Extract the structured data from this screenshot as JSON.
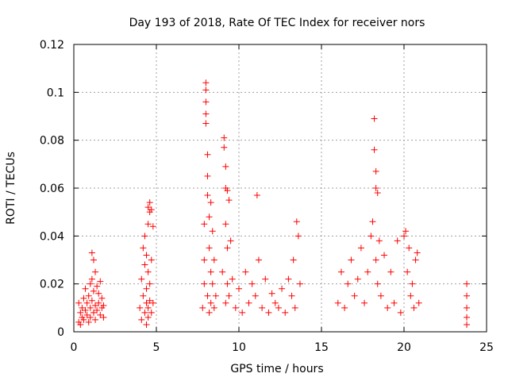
{
  "chart_data": {
    "type": "scatter",
    "title": "Day 193 of 2018, Rate Of TEC Index for receiver nors",
    "xlabel": "GPS time / hours",
    "ylabel": "ROTI / TECUs",
    "xlim": [
      0,
      25
    ],
    "ylim": [
      0,
      0.12
    ],
    "xticks": [
      0,
      5,
      10,
      15,
      20,
      25
    ],
    "xtick_labels": [
      "0",
      "5",
      "10",
      "15",
      "20",
      "25"
    ],
    "yticks": [
      0,
      0.02,
      0.04,
      0.06,
      0.08,
      0.1,
      0.12
    ],
    "ytick_labels": [
      "0",
      "0.02",
      "0.04",
      "0.06",
      "0.08",
      "0.1",
      "0.12"
    ],
    "grid": true,
    "marker": "+",
    "marker_color": "#ff0000",
    "series": [
      {
        "name": "ROTI",
        "x": [
          0.3,
          0.3,
          0.4,
          0.4,
          0.5,
          0.5,
          0.6,
          0.6,
          0.7,
          0.7,
          0.8,
          0.8,
          0.9,
          0.9,
          1.0,
          1.0,
          1.0,
          1.1,
          1.1,
          1.1,
          1.2,
          1.2,
          1.2,
          1.3,
          1.3,
          1.3,
          1.4,
          1.4,
          1.5,
          1.5,
          1.6,
          1.6,
          1.7,
          1.7,
          1.8,
          1.8,
          4.0,
          4.1,
          4.1,
          4.2,
          4.2,
          4.3,
          4.3,
          4.3,
          4.4,
          4.4,
          4.4,
          4.4,
          4.5,
          4.5,
          4.5,
          4.5,
          4.5,
          4.6,
          4.6,
          4.6,
          4.6,
          4.7,
          4.7,
          4.7,
          4.8,
          4.8,
          7.8,
          7.9,
          7.9,
          7.9,
          8.0,
          8.0,
          8.0,
          8.0,
          8.0,
          8.1,
          8.1,
          8.1,
          8.1,
          8.2,
          8.2,
          8.2,
          8.3,
          8.3,
          8.3,
          8.4,
          8.4,
          8.5,
          8.5,
          8.6,
          9.0,
          9.1,
          9.1,
          9.2,
          9.2,
          9.2,
          9.2,
          9.3,
          9.3,
          9.3,
          9.4,
          9.4,
          9.5,
          9.6,
          9.8,
          10.0,
          10.2,
          10.4,
          10.6,
          10.8,
          11.0,
          11.1,
          11.2,
          11.4,
          11.6,
          11.8,
          12.0,
          12.2,
          12.4,
          12.6,
          12.8,
          13.0,
          13.2,
          13.3,
          13.4,
          13.5,
          13.6,
          13.7,
          16.0,
          16.2,
          16.4,
          16.6,
          16.8,
          17.0,
          17.2,
          17.4,
          17.6,
          17.8,
          18.0,
          18.1,
          18.2,
          18.2,
          18.3,
          18.3,
          18.3,
          18.4,
          18.4,
          18.5,
          18.6,
          18.8,
          19.0,
          19.2,
          19.4,
          19.6,
          19.8,
          20.0,
          20.1,
          20.2,
          20.3,
          20.4,
          20.5,
          20.6,
          20.7,
          20.8,
          20.9,
          23.8,
          23.8,
          23.8,
          23.8,
          23.8
        ],
        "y": [
          0.004,
          0.012,
          0.008,
          0.003,
          0.01,
          0.006,
          0.014,
          0.005,
          0.009,
          0.018,
          0.007,
          0.012,
          0.015,
          0.004,
          0.02,
          0.01,
          0.006,
          0.033,
          0.022,
          0.013,
          0.03,
          0.008,
          0.017,
          0.025,
          0.011,
          0.005,
          0.019,
          0.009,
          0.016,
          0.012,
          0.021,
          0.007,
          0.014,
          0.01,
          0.006,
          0.011,
          0.01,
          0.022,
          0.005,
          0.035,
          0.015,
          0.028,
          0.04,
          0.008,
          0.032,
          0.018,
          0.012,
          0.003,
          0.052,
          0.045,
          0.025,
          0.01,
          0.006,
          0.054,
          0.05,
          0.02,
          0.013,
          0.051,
          0.03,
          0.008,
          0.044,
          0.012,
          0.01,
          0.03,
          0.045,
          0.02,
          0.104,
          0.101,
          0.096,
          0.091,
          0.087,
          0.074,
          0.065,
          0.057,
          0.015,
          0.048,
          0.035,
          0.008,
          0.054,
          0.025,
          0.012,
          0.042,
          0.02,
          0.03,
          0.01,
          0.015,
          0.025,
          0.081,
          0.077,
          0.069,
          0.06,
          0.045,
          0.012,
          0.059,
          0.035,
          0.02,
          0.055,
          0.015,
          0.038,
          0.022,
          0.01,
          0.018,
          0.008,
          0.025,
          0.012,
          0.02,
          0.015,
          0.057,
          0.03,
          0.01,
          0.022,
          0.008,
          0.016,
          0.012,
          0.01,
          0.018,
          0.008,
          0.022,
          0.015,
          0.03,
          0.01,
          0.046,
          0.04,
          0.02,
          0.012,
          0.025,
          0.01,
          0.02,
          0.03,
          0.015,
          0.022,
          0.035,
          0.012,
          0.025,
          0.04,
          0.046,
          0.089,
          0.076,
          0.067,
          0.06,
          0.03,
          0.058,
          0.02,
          0.038,
          0.015,
          0.032,
          0.01,
          0.025,
          0.012,
          0.038,
          0.008,
          0.04,
          0.042,
          0.025,
          0.035,
          0.015,
          0.02,
          0.01,
          0.03,
          0.033,
          0.012,
          0.02,
          0.015,
          0.01,
          0.006,
          0.003
        ]
      }
    ]
  }
}
